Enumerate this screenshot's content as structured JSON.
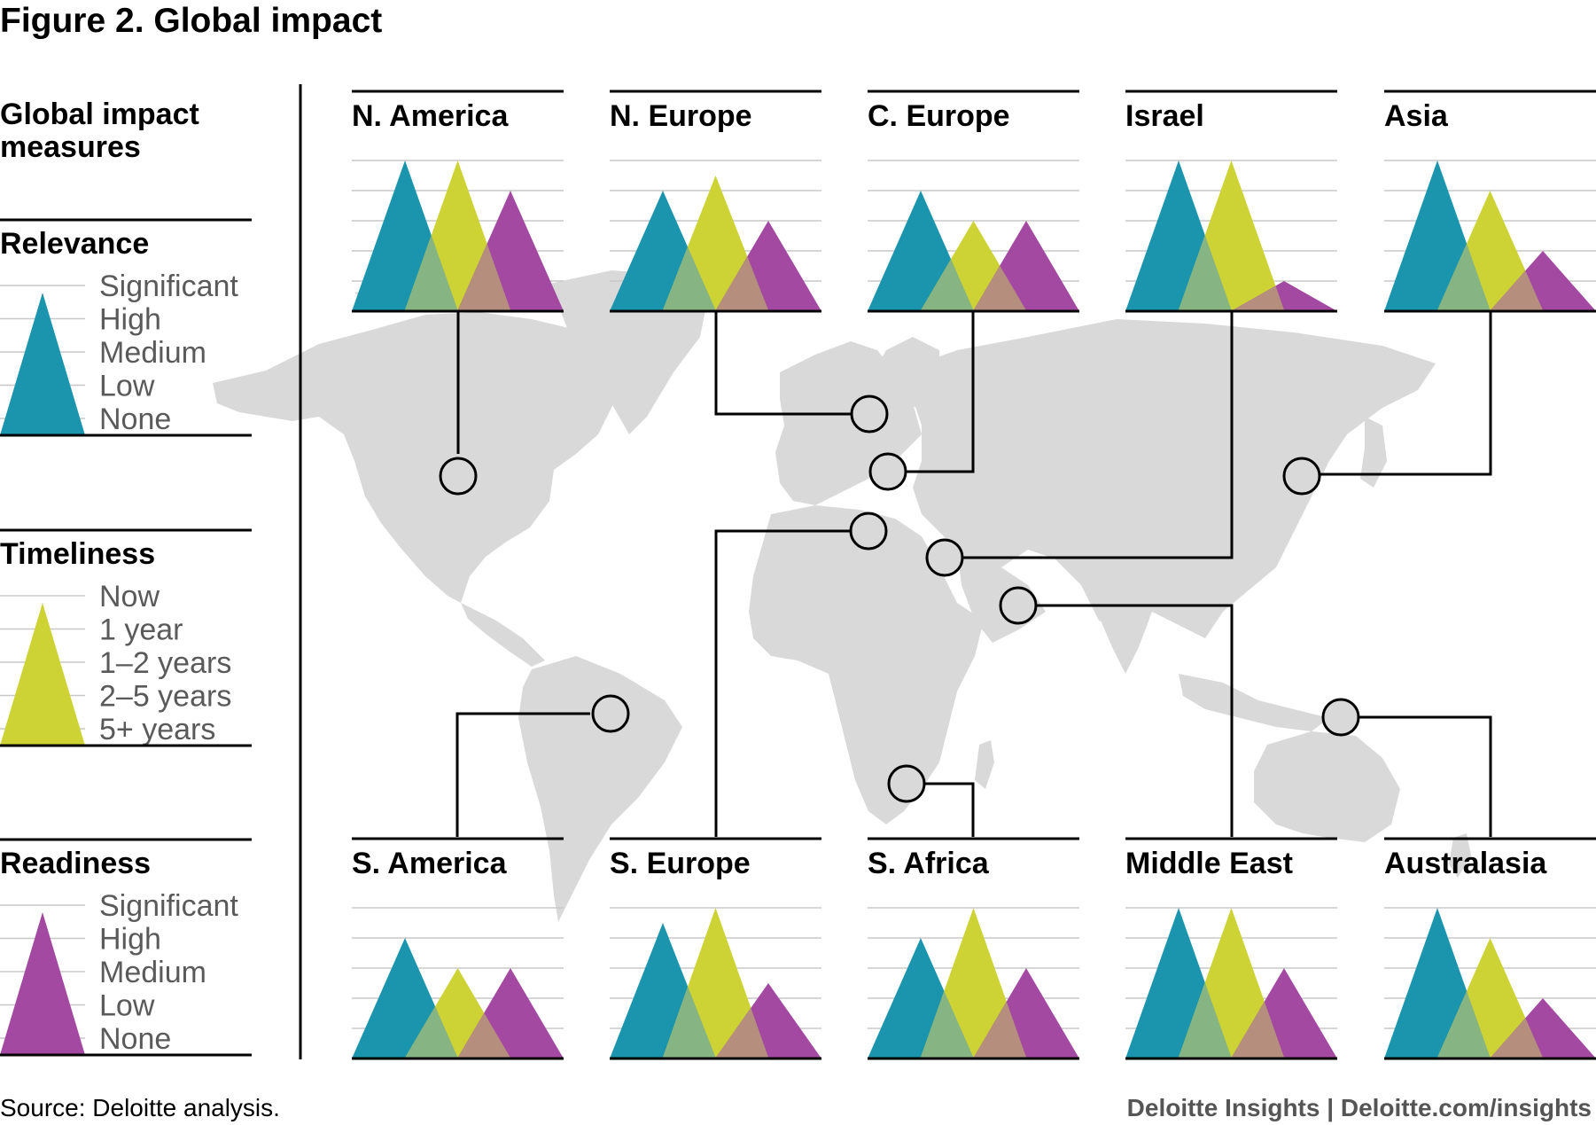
{
  "figure": {
    "title": "Figure 2. Global impact",
    "source": "Source: Deloitte analysis.",
    "credit": "Deloitte Insights | Deloitte.com/insights"
  },
  "legend": {
    "heading_line1": "Global impact",
    "heading_line2": "measures",
    "measures": [
      {
        "key": "relevance",
        "name": "Relevance",
        "color": "#1b95ae",
        "levels": [
          "Significant",
          "High",
          "Medium",
          "Low",
          "None"
        ]
      },
      {
        "key": "timeliness",
        "name": "Timeliness",
        "color": "#cdd235",
        "levels": [
          "Now",
          "1 year",
          "1–2 years",
          "2–5 years",
          "5+ years"
        ]
      },
      {
        "key": "readiness",
        "name": "Readiness",
        "color": "#a349a1",
        "levels": [
          "Significant",
          "High",
          "Medium",
          "Low",
          "None"
        ]
      }
    ]
  },
  "colors": {
    "relevance": "#1b95ae",
    "timeliness": "#cdd235",
    "readiness": "#a349a1",
    "overlap_relevance_timeliness": "#86b482",
    "overlap_timeliness_readiness": "#b58e7d",
    "map": "#d9d9d9",
    "gridline": "#c8c8c8",
    "connector": "#000000"
  },
  "chart_data": {
    "type": "triangle-glyph small multiples",
    "scale_note": "0 = None / 5+ years, 4 = Significant / Now",
    "series": [
      "Relevance",
      "Timeliness",
      "Readiness"
    ],
    "regions": [
      {
        "name": "N. America",
        "relevance": 5,
        "timeliness": 5,
        "readiness": 4
      },
      {
        "name": "N. Europe",
        "relevance": 4,
        "timeliness": 4.5,
        "readiness": 3
      },
      {
        "name": "C. Europe",
        "relevance": 4,
        "timeliness": 3,
        "readiness": 3
      },
      {
        "name": "Israel",
        "relevance": 5,
        "timeliness": 5,
        "readiness": 1
      },
      {
        "name": "Asia",
        "relevance": 5,
        "timeliness": 4,
        "readiness": 2
      },
      {
        "name": "S. America",
        "relevance": 4,
        "timeliness": 3,
        "readiness": 3
      },
      {
        "name": "S. Europe",
        "relevance": 4.5,
        "timeliness": 5,
        "readiness": 2.5
      },
      {
        "name": "S. Africa",
        "relevance": 4,
        "timeliness": 5,
        "readiness": 3
      },
      {
        "name": "Middle East",
        "relevance": 5,
        "timeliness": 5,
        "readiness": 3
      },
      {
        "name": "Australasia",
        "relevance": 5,
        "timeliness": 4,
        "readiness": 2
      }
    ]
  }
}
